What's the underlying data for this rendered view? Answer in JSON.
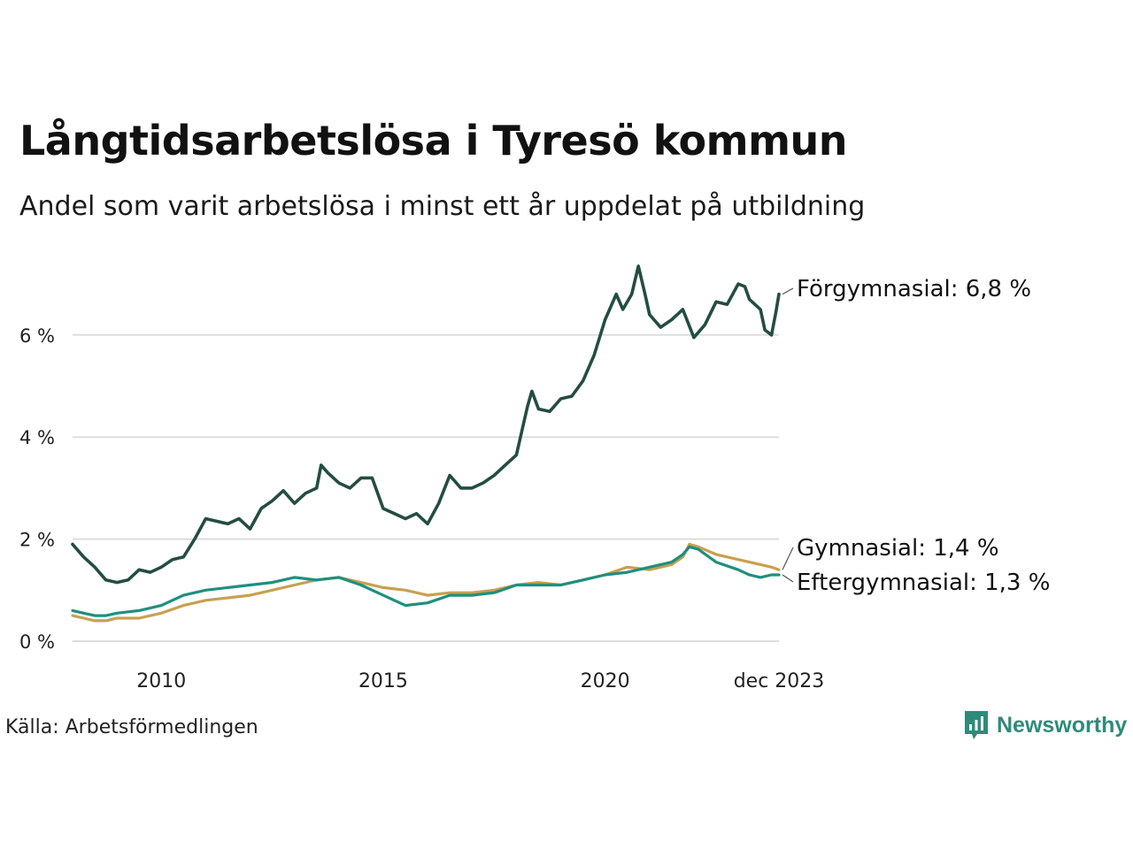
{
  "title": "Långtidsarbetslösa i Tyresö kommun",
  "subtitle": "Andel som varit arbetslösa i minst ett år uppdelat på utbildning",
  "source": "Källa: Arbetsförmedlingen",
  "brand": {
    "name": "Newsworthy",
    "icon": "newsworthy-logo-icon",
    "color": "#2e8b7a"
  },
  "chart_data": {
    "type": "line",
    "title": "Långtidsarbetslösa i Tyresö kommun",
    "xlabel": "",
    "ylabel": "",
    "xlim": [
      2008.0,
      2023.917
    ],
    "ylim": [
      0,
      7.4
    ],
    "grid": true,
    "yticks": [
      {
        "value": 0,
        "label": "0 %"
      },
      {
        "value": 2,
        "label": "2 %"
      },
      {
        "value": 4,
        "label": "4 %"
      },
      {
        "value": 6,
        "label": "6 %"
      }
    ],
    "xticks": [
      {
        "value": 2010,
        "label": "2010"
      },
      {
        "value": 2015,
        "label": "2015"
      },
      {
        "value": 2020,
        "label": "2020"
      },
      {
        "value": 2023.917,
        "label": "dec 2023"
      }
    ],
    "series": [
      {
        "name": "Förgymnasial",
        "end_label": "Förgymnasial: 6,8 %",
        "color": "#244d42",
        "points": [
          [
            2008.0,
            1.9
          ],
          [
            2008.25,
            1.65
          ],
          [
            2008.5,
            1.45
          ],
          [
            2008.75,
            1.2
          ],
          [
            2009.0,
            1.15
          ],
          [
            2009.25,
            1.2
          ],
          [
            2009.5,
            1.4
          ],
          [
            2009.75,
            1.35
          ],
          [
            2010.0,
            1.45
          ],
          [
            2010.25,
            1.6
          ],
          [
            2010.5,
            1.65
          ],
          [
            2010.75,
            2.0
          ],
          [
            2011.0,
            2.4
          ],
          [
            2011.25,
            2.35
          ],
          [
            2011.5,
            2.3
          ],
          [
            2011.75,
            2.4
          ],
          [
            2012.0,
            2.2
          ],
          [
            2012.25,
            2.6
          ],
          [
            2012.5,
            2.75
          ],
          [
            2012.75,
            2.95
          ],
          [
            2013.0,
            2.7
          ],
          [
            2013.25,
            2.9
          ],
          [
            2013.5,
            3.0
          ],
          [
            2013.6,
            3.45
          ],
          [
            2013.75,
            3.3
          ],
          [
            2014.0,
            3.1
          ],
          [
            2014.25,
            3.0
          ],
          [
            2014.5,
            3.2
          ],
          [
            2014.75,
            3.2
          ],
          [
            2015.0,
            2.6
          ],
          [
            2015.25,
            2.5
          ],
          [
            2015.5,
            2.4
          ],
          [
            2015.75,
            2.5
          ],
          [
            2016.0,
            2.3
          ],
          [
            2016.25,
            2.7
          ],
          [
            2016.5,
            3.25
          ],
          [
            2016.75,
            3.0
          ],
          [
            2017.0,
            3.0
          ],
          [
            2017.25,
            3.1
          ],
          [
            2017.5,
            3.25
          ],
          [
            2017.75,
            3.45
          ],
          [
            2018.0,
            3.65
          ],
          [
            2018.25,
            4.6
          ],
          [
            2018.35,
            4.9
          ],
          [
            2018.5,
            4.55
          ],
          [
            2018.75,
            4.5
          ],
          [
            2019.0,
            4.75
          ],
          [
            2019.25,
            4.8
          ],
          [
            2019.5,
            5.1
          ],
          [
            2019.75,
            5.6
          ],
          [
            2020.0,
            6.3
          ],
          [
            2020.25,
            6.8
          ],
          [
            2020.4,
            6.5
          ],
          [
            2020.6,
            6.8
          ],
          [
            2020.75,
            7.35
          ],
          [
            2020.9,
            6.8
          ],
          [
            2021.0,
            6.4
          ],
          [
            2021.25,
            6.15
          ],
          [
            2021.5,
            6.3
          ],
          [
            2021.75,
            6.5
          ],
          [
            2022.0,
            5.95
          ],
          [
            2022.25,
            6.2
          ],
          [
            2022.5,
            6.65
          ],
          [
            2022.75,
            6.6
          ],
          [
            2023.0,
            7.0
          ],
          [
            2023.15,
            6.95
          ],
          [
            2023.25,
            6.7
          ],
          [
            2023.5,
            6.5
          ],
          [
            2023.6,
            6.1
          ],
          [
            2023.75,
            6.0
          ],
          [
            2023.85,
            6.45
          ],
          [
            2023.917,
            6.8
          ]
        ]
      },
      {
        "name": "Gymnasial",
        "end_label": "Gymnasial: 1,4 %",
        "color": "#c8a050",
        "points": [
          [
            2008.0,
            0.5
          ],
          [
            2008.25,
            0.45
          ],
          [
            2008.5,
            0.4
          ],
          [
            2008.75,
            0.4
          ],
          [
            2009.0,
            0.45
          ],
          [
            2009.5,
            0.45
          ],
          [
            2010.0,
            0.55
          ],
          [
            2010.5,
            0.7
          ],
          [
            2011.0,
            0.8
          ],
          [
            2011.5,
            0.85
          ],
          [
            2012.0,
            0.9
          ],
          [
            2012.5,
            1.0
          ],
          [
            2013.0,
            1.1
          ],
          [
            2013.5,
            1.2
          ],
          [
            2014.0,
            1.25
          ],
          [
            2014.5,
            1.15
          ],
          [
            2015.0,
            1.05
          ],
          [
            2015.5,
            1.0
          ],
          [
            2016.0,
            0.9
          ],
          [
            2016.5,
            0.95
          ],
          [
            2017.0,
            0.95
          ],
          [
            2017.5,
            1.0
          ],
          [
            2018.0,
            1.1
          ],
          [
            2018.5,
            1.15
          ],
          [
            2019.0,
            1.1
          ],
          [
            2019.5,
            1.2
          ],
          [
            2020.0,
            1.3
          ],
          [
            2020.5,
            1.45
          ],
          [
            2021.0,
            1.4
          ],
          [
            2021.5,
            1.5
          ],
          [
            2021.75,
            1.65
          ],
          [
            2021.9,
            1.9
          ],
          [
            2022.1,
            1.85
          ],
          [
            2022.5,
            1.7
          ],
          [
            2023.0,
            1.6
          ],
          [
            2023.5,
            1.5
          ],
          [
            2023.75,
            1.45
          ],
          [
            2023.917,
            1.4
          ]
        ]
      },
      {
        "name": "Eftergymnasial",
        "end_label": "Eftergymnasial: 1,3 %",
        "color": "#1f8f7e",
        "points": [
          [
            2008.0,
            0.6
          ],
          [
            2008.25,
            0.55
          ],
          [
            2008.5,
            0.5
          ],
          [
            2008.75,
            0.5
          ],
          [
            2009.0,
            0.55
          ],
          [
            2009.5,
            0.6
          ],
          [
            2010.0,
            0.7
          ],
          [
            2010.5,
            0.9
          ],
          [
            2011.0,
            1.0
          ],
          [
            2011.5,
            1.05
          ],
          [
            2012.0,
            1.1
          ],
          [
            2012.5,
            1.15
          ],
          [
            2013.0,
            1.25
          ],
          [
            2013.5,
            1.2
          ],
          [
            2014.0,
            1.25
          ],
          [
            2014.5,
            1.1
          ],
          [
            2015.0,
            0.9
          ],
          [
            2015.5,
            0.7
          ],
          [
            2016.0,
            0.75
          ],
          [
            2016.5,
            0.9
          ],
          [
            2017.0,
            0.9
          ],
          [
            2017.5,
            0.95
          ],
          [
            2018.0,
            1.1
          ],
          [
            2018.5,
            1.1
          ],
          [
            2019.0,
            1.1
          ],
          [
            2019.5,
            1.2
          ],
          [
            2020.0,
            1.3
          ],
          [
            2020.5,
            1.35
          ],
          [
            2021.0,
            1.45
          ],
          [
            2021.5,
            1.55
          ],
          [
            2021.75,
            1.7
          ],
          [
            2021.9,
            1.85
          ],
          [
            2022.1,
            1.8
          ],
          [
            2022.5,
            1.55
          ],
          [
            2023.0,
            1.4
          ],
          [
            2023.25,
            1.3
          ],
          [
            2023.5,
            1.25
          ],
          [
            2023.75,
            1.3
          ],
          [
            2023.917,
            1.3
          ]
        ]
      }
    ]
  }
}
